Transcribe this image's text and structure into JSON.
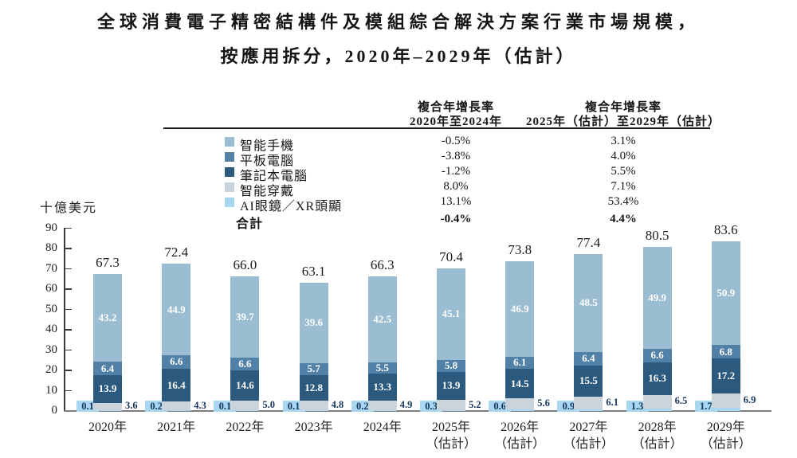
{
  "page": {
    "title_line1": "全球消費電子精密結構件及模組綜合解決方案行業市場規模，",
    "title_line2": "按應用拆分，2020年–2029年（估計）"
  },
  "cagr_table": {
    "col1_header_line1": "複合年增長率",
    "col1_header_line2": "2020年至2024年",
    "col2_header_line1": "複合年增長率",
    "col2_header_line2": "2025年（估計）至2029年（估計）",
    "rows": [
      {
        "id": "smartphone",
        "label": "智能手機",
        "swatch": "#9abdd1",
        "cagr_2020_2024": "-0.5%",
        "cagr_2025_2029": "3.1%"
      },
      {
        "id": "tablet",
        "label": "平板電腦",
        "swatch": "#5181a6",
        "cagr_2020_2024": "-3.8%",
        "cagr_2025_2029": "4.0%"
      },
      {
        "id": "laptop",
        "label": "筆記本電腦",
        "swatch": "#2b5a7e",
        "cagr_2020_2024": "-1.2%",
        "cagr_2025_2029": "5.5%"
      },
      {
        "id": "wearable",
        "label": "智能穿戴",
        "swatch": "#ccd4db",
        "cagr_2020_2024": "8.0%",
        "cagr_2025_2029": "7.1%"
      },
      {
        "id": "ai-xr",
        "label": "AI眼鏡／XR頭顯",
        "swatch": "#a9d6f0",
        "cagr_2020_2024": "13.1%",
        "cagr_2025_2029": "53.4%"
      }
    ],
    "total_row": {
      "label": "合計",
      "cagr_2020_2024": "-0.4%",
      "cagr_2025_2029": "4.4%"
    }
  },
  "chart_data": {
    "type": "bar",
    "subtype": "stacked",
    "title": "全球消費電子精密結構件及模組綜合解決方案行業市場規模，按應用拆分，2020年–2029年（估計）",
    "unit_label": "十億美元",
    "ylabel": "十億美元",
    "xlabel": "",
    "ylim": [
      0,
      90
    ],
    "ytick_step": 10,
    "grid": false,
    "legend_position": "top-table",
    "categories": [
      "2020年",
      "2021年",
      "2022年",
      "2023年",
      "2024年",
      "2025年",
      "2026年",
      "2027年",
      "2028年",
      "2029年"
    ],
    "category_sublabels": [
      "",
      "",
      "",
      "",
      "",
      "（估計）",
      "（估計）",
      "（估計）",
      "（估計）",
      "（估計）"
    ],
    "series": [
      {
        "id": "ai-xr",
        "name": "AI眼鏡／XR頭顯",
        "color": "#a9d6f0",
        "label_style": "left-box",
        "values": [
          0.1,
          0.2,
          0.1,
          0.1,
          0.2,
          0.3,
          0.6,
          0.9,
          1.3,
          1.7
        ]
      },
      {
        "id": "wearable",
        "name": "智能穿戴",
        "color": "#ccd4db",
        "label_style": "right-outside",
        "values": [
          3.6,
          4.3,
          5.0,
          4.8,
          4.9,
          5.2,
          5.6,
          6.1,
          6.5,
          6.9
        ]
      },
      {
        "id": "laptop",
        "name": "筆記本電腦",
        "color": "#2b5a7e",
        "label_style": "inside",
        "values": [
          13.9,
          16.4,
          14.6,
          12.8,
          13.3,
          13.9,
          14.5,
          15.5,
          16.3,
          17.2
        ]
      },
      {
        "id": "tablet",
        "name": "平板電腦",
        "color": "#5181a6",
        "label_style": "inside",
        "values": [
          6.4,
          6.6,
          6.6,
          5.7,
          5.5,
          5.8,
          6.1,
          6.4,
          6.6,
          6.8
        ]
      },
      {
        "id": "smartphone",
        "name": "智能手機",
        "color": "#9abdd1",
        "label_style": "inside",
        "values": [
          43.2,
          44.9,
          39.7,
          39.6,
          42.5,
          45.1,
          46.9,
          48.5,
          49.9,
          50.9
        ]
      }
    ],
    "totals": [
      67.3,
      72.4,
      66.0,
      63.1,
      66.3,
      70.4,
      73.8,
      77.4,
      80.5,
      83.6
    ]
  }
}
